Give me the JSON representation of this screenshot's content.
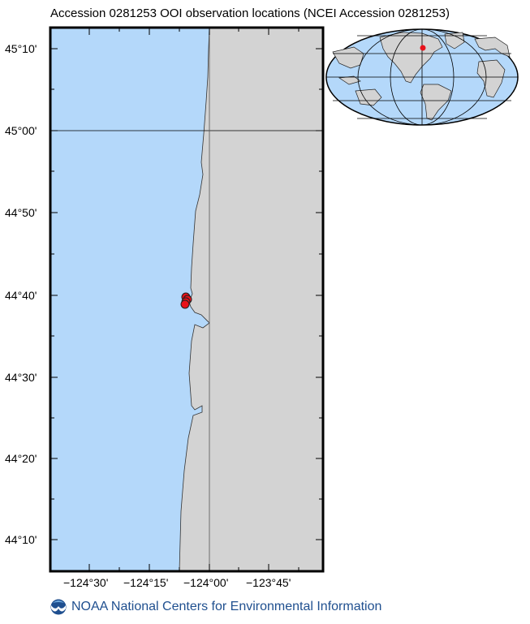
{
  "title": "Accession 0281253 OOI observation locations (NCEI Accession 0281253)",
  "footer": {
    "text": "NOAA National Centers for Environmental Information",
    "logo_icon": "noaa-logo-icon"
  },
  "map": {
    "projection": "mercator",
    "lon_range": [
      -124.6667,
      -123.5667
    ],
    "lat_range": [
      44.1,
      45.25
    ],
    "lat_ticks": [
      "45°10'",
      "45°00'",
      "44°50'",
      "44°40'",
      "44°30'",
      "44°20'",
      "44°10'"
    ],
    "lon_ticks": [
      "−124°30'",
      "−124°15'",
      "−124°00'",
      "−123°45'"
    ],
    "gridlines": {
      "lat": "45°00'",
      "lon": "−124°00'"
    },
    "ocean_color": "#b4d8fa",
    "land_color": "#d3d3d3",
    "marker_color": "#e8111a",
    "observations": [
      {
        "lat": 44.66,
        "lon": -124.1
      },
      {
        "lat": 44.655,
        "lon": -124.095
      },
      {
        "lat": 44.65,
        "lon": -124.1
      },
      {
        "lat": 44.645,
        "lon": -124.102
      }
    ]
  },
  "inset": {
    "projection": "mollweide",
    "marker_color": "#e8111a"
  }
}
